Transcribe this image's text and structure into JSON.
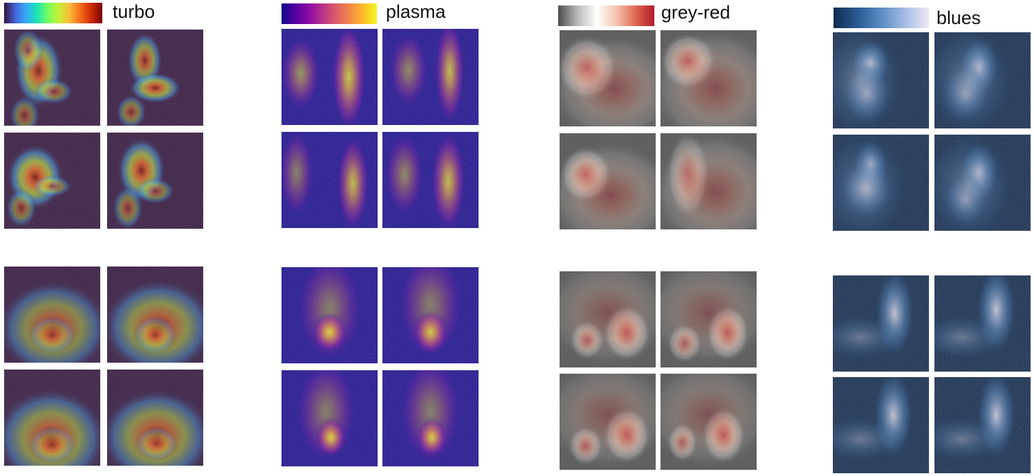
{
  "colormaps": [
    {
      "id": "turbo",
      "label": "turbo",
      "stops": [
        "#30123b",
        "#4662d7",
        "#36aaf9",
        "#1ae4b6",
        "#72fe5e",
        "#c7ef34",
        "#faba39",
        "#f66b19",
        "#ca2a04",
        "#7a0403"
      ],
      "background": "#30123b",
      "pattern_top": "three-lobed blob with two bright spots",
      "pattern_bottom": "broad oval blob"
    },
    {
      "id": "plasma",
      "label": "plasma",
      "stops": [
        "#0d0887",
        "#5402a3",
        "#8b0aa5",
        "#b93289",
        "#db5c68",
        "#f48849",
        "#febc2a",
        "#f0f921"
      ],
      "background": "#1a0c8f",
      "pattern_top": "two vertical bright bands",
      "pattern_bottom": "diffuse column with bright lower spot"
    },
    {
      "id": "grey-red",
      "label": "grey-red",
      "stops": [
        "#4d4d4d",
        "#b8b8b8",
        "#ffffff",
        "#f7c4b0",
        "#e06a52",
        "#b2182b"
      ],
      "background": "#4d4d4d",
      "pattern_top": "bright left spot with diffuse haze",
      "pattern_bottom": "two bright spots"
    },
    {
      "id": "blues",
      "label": "blues",
      "stops": [
        "#0f2a4f",
        "#2a5a92",
        "#5a8cc4",
        "#a6bde3",
        "#efe9f6"
      ],
      "background": "#10294d",
      "pattern_top": "curved S-shaped streak",
      "pattern_bottom": "V-shaped diagonal streak"
    }
  ]
}
